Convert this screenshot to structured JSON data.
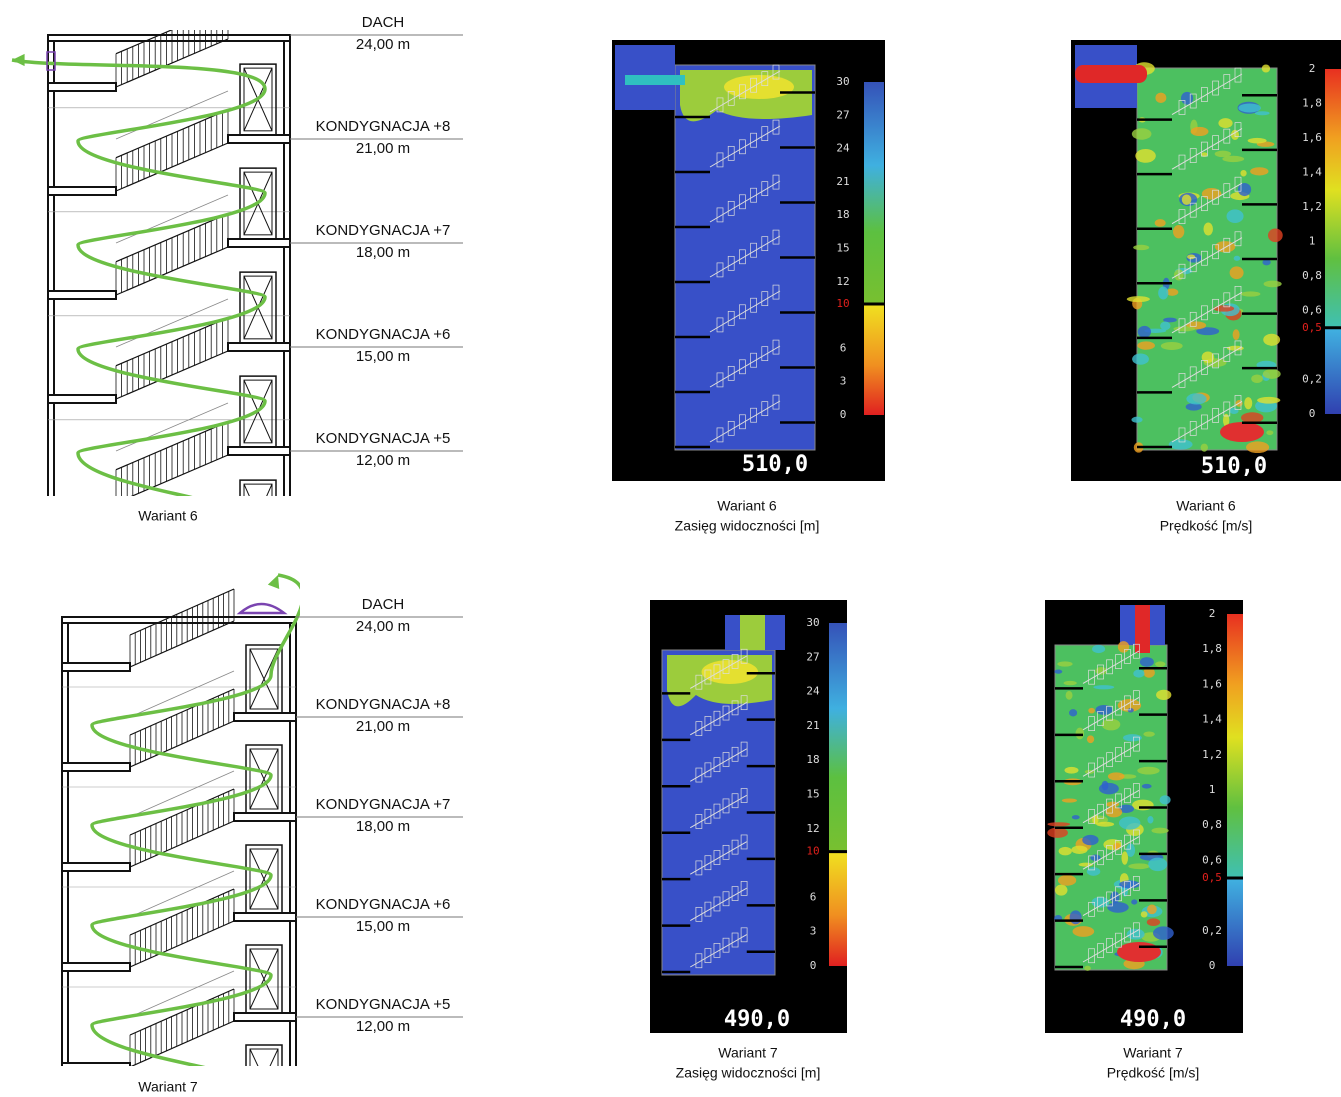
{
  "diagrams": [
    {
      "levels": [
        {
          "name": "DACH",
          "height": "24,00 m"
        },
        {
          "name": "KONDYGNACJA +8",
          "height": "21,00 m"
        },
        {
          "name": "KONDYGNACJA +7",
          "height": "18,00 m"
        },
        {
          "name": "KONDYGNACJA +6",
          "height": "15,00 m"
        },
        {
          "name": "KONDYGNACJA +5",
          "height": "12,00 m"
        }
      ],
      "caption": "Wariant 6"
    },
    {
      "levels": [
        {
          "name": "DACH",
          "height": "24,00 m"
        },
        {
          "name": "KONDYGNACJA +8",
          "height": "21,00 m"
        },
        {
          "name": "KONDYGNACJA +7",
          "height": "18,00 m"
        },
        {
          "name": "KONDYGNACJA +6",
          "height": "15,00 m"
        },
        {
          "name": "KONDYGNACJA +5",
          "height": "12,00 m"
        }
      ],
      "caption": "Wariant 7"
    }
  ],
  "simulations": [
    {
      "kind": "visibility",
      "time": "510,0",
      "caption": {
        "variant": "Wariant 6",
        "label": "Zasięg widoczności [m]"
      },
      "scale": [
        "30",
        "27",
        "24",
        "21",
        "18",
        "15",
        "12",
        {
          "label": "10",
          "color": "#e0201c"
        },
        "6",
        "3",
        "0"
      ]
    },
    {
      "kind": "velocity",
      "time": "510,0",
      "caption": {
        "variant": "Wariant 6",
        "label": "Prędkość [m/s]"
      },
      "scale": [
        "2",
        "1,8",
        "1,6",
        "1,4",
        "1,2",
        "1",
        "0,8",
        "0,6",
        {
          "label": "0,5",
          "color": "#e0201c"
        },
        "0,2",
        "0"
      ]
    },
    {
      "kind": "visibility",
      "time": "490,0",
      "caption": {
        "variant": "Wariant 7",
        "label": "Zasięg widoczności [m]"
      },
      "scale": [
        "30",
        "27",
        "24",
        "21",
        "18",
        "15",
        "12",
        {
          "label": "10",
          "color": "#e0201c"
        },
        "6",
        "3",
        "0"
      ]
    },
    {
      "kind": "velocity",
      "time": "490,0",
      "caption": {
        "variant": "Wariant 7",
        "label": "Prędkość [m/s]"
      },
      "scale": [
        "2",
        "1,8",
        "1,6",
        "1,4",
        "1,2",
        "1",
        "0,8",
        "0,6",
        {
          "label": "0,5",
          "color": "#e0201c"
        },
        "0,2",
        "0"
      ]
    }
  ]
}
